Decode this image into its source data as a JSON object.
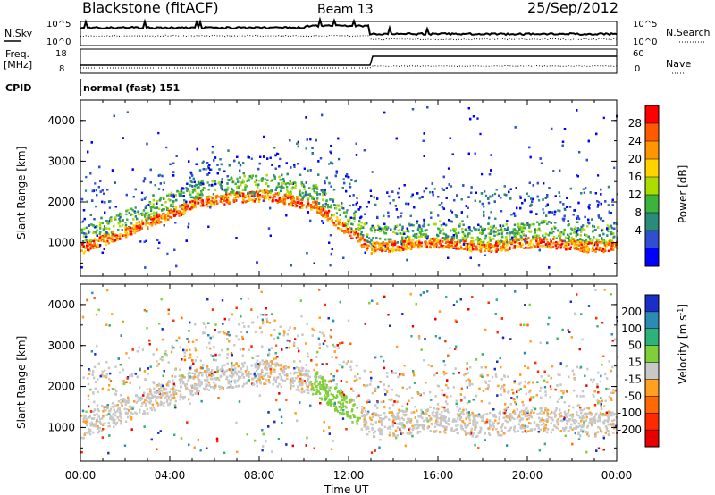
{
  "header": {
    "station": "Blackstone (fitACF)",
    "beam": "Beam 13",
    "date": "25/Sep/2012"
  },
  "top_panels": {
    "nsky_label": "N.Sky",
    "nsky_ticks": [
      "10^5",
      "10^0"
    ],
    "nsearch_label": "N.Search",
    "nsearch_ticks": [
      "10^5",
      "10^0"
    ],
    "freq_label": "Freq.",
    "freq_unit": "[MHz]",
    "freq_ticks": [
      "18",
      "8"
    ],
    "nave_label": "Nave",
    "nave_ticks": [
      "60",
      "0"
    ],
    "cpid_label": "CPID",
    "cpid_value": "normal (fast) 151"
  },
  "chart_data": [
    {
      "type": "heatmap",
      "name": "power",
      "ylabel": "Slant Range [km]",
      "ylim": [
        180,
        4500
      ],
      "yticks": [
        "4000",
        "3000",
        "2000",
        "1000"
      ],
      "colorbar": {
        "label": "Power [dB]",
        "ticks": [
          "28",
          "24",
          "20",
          "16",
          "12",
          "8",
          "4"
        ],
        "colors": [
          "#ff0000",
          "#ff5a00",
          "#ff9600",
          "#ffd200",
          "#aadc00",
          "#3cb43c",
          "#2a8c78",
          "#2f4fd0",
          "#0000ff"
        ]
      }
    },
    {
      "type": "heatmap",
      "name": "velocity",
      "ylabel": "Slant Range [km]",
      "ylim": [
        180,
        4500
      ],
      "yticks": [
        "4000",
        "3000",
        "2000",
        "1000"
      ],
      "xlabel": "Time UT",
      "xticks": [
        "00:00",
        "04:00",
        "08:00",
        "12:00",
        "16:00",
        "20:00",
        "00:00"
      ],
      "colorbar": {
        "label": "Velocity [m s",
        "label_sup": "-1",
        "label_end": "]",
        "ticks": [
          "200",
          "100",
          "50",
          "15",
          "-15",
          "-50",
          "-100",
          "-200"
        ],
        "colors": [
          "#1a2fc8",
          "#2a8cb4",
          "#2db37a",
          "#7ecf3a",
          "#c8c8c8",
          "#ffa020",
          "#ff6a00",
          "#ff2a00",
          "#e80000"
        ]
      }
    }
  ]
}
